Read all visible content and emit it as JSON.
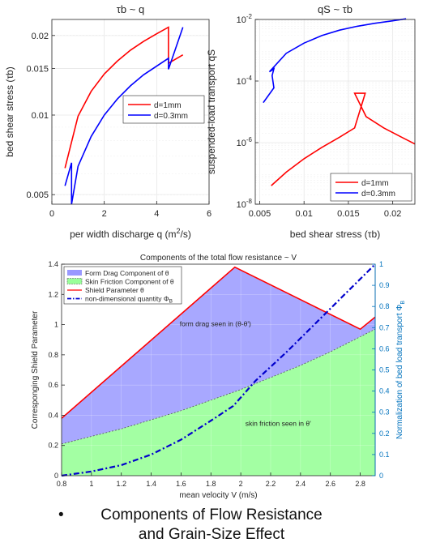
{
  "chart_data": [
    {
      "type": "line",
      "title": "τb ~ q",
      "xlabel": "per width discharge q (m²/s)",
      "ylabel": "bed shear stress (τb)",
      "yscale": "log",
      "xlim": [
        0,
        6
      ],
      "ylim": [
        0.0046,
        0.023
      ],
      "xticks": [
        0,
        2,
        4,
        6
      ],
      "yticks": [
        0.005,
        0.01,
        0.015,
        0.02
      ],
      "xtick_labels": [
        "0",
        "2",
        "4",
        "6"
      ],
      "ytick_labels": [
        "0.005",
        "0.01",
        "0.015",
        "0.02"
      ],
      "grid": true,
      "legend_position": "center-right",
      "series": [
        {
          "name": "d=1mm",
          "color": "#ff0000",
          "x": [
            0.5,
            1.0,
            1.5,
            2.0,
            2.5,
            3.0,
            3.5,
            4.0,
            4.45,
            4.45,
            5.0
          ],
          "y": [
            0.0063,
            0.0099,
            0.0123,
            0.0143,
            0.016,
            0.0176,
            0.019,
            0.0203,
            0.0215,
            0.0157,
            0.0169
          ]
        },
        {
          "name": "d=0.3mm",
          "color": "#0000ff",
          "x": [
            0.5,
            0.75,
            0.75,
            1.0,
            1.5,
            2.0,
            2.5,
            3.0,
            3.5,
            4.45,
            4.45,
            5.0
          ],
          "y": [
            0.0054,
            0.0066,
            0.0046,
            0.0064,
            0.0083,
            0.01,
            0.0115,
            0.0129,
            0.0142,
            0.0164,
            0.0149,
            0.0215
          ]
        }
      ]
    },
    {
      "type": "line",
      "title": "qS ~ τb",
      "xlabel": "bed shear stress (τb)",
      "ylabel": "suspended-load transport qS",
      "yscale": "log",
      "xlim": [
        0.0045,
        0.0225
      ],
      "ylim": [
        1e-08,
        0.01
      ],
      "xticks": [
        0.005,
        0.01,
        0.015,
        0.02
      ],
      "xtick_labels": [
        "0.005",
        "0.01",
        "0.015",
        "0.02"
      ],
      "yticks": [
        1e-08,
        1e-06,
        0.0001,
        0.01
      ],
      "ytick_labels": [
        "10^-8",
        "10^-6",
        "10^-4",
        "10^-2"
      ],
      "grid": true,
      "legend_position": "bottom-right",
      "series": [
        {
          "name": "d=1mm",
          "color": "#ff0000",
          "x": [
            0.0063,
            0.008,
            0.01,
            0.012,
            0.014,
            0.0157,
            0.0169,
            0.0157,
            0.017,
            0.019,
            0.021,
            0.0225
          ],
          "y": [
            4e-08,
            1.1e-07,
            3e-07,
            7e-07,
            1.5e-06,
            3e-06,
            4e-05,
            4e-05,
            7e-06,
            3e-06,
            1.5e-06,
            9e-07
          ]
        },
        {
          "name": "d=0.3mm",
          "color": "#0000ff",
          "x": [
            0.0054,
            0.0066,
            0.0064,
            0.0066,
            0.0061,
            0.008,
            0.01,
            0.012,
            0.014,
            0.016,
            0.018,
            0.02,
            0.0215
          ],
          "y": [
            2e-05,
            6e-05,
            0.00015,
            0.00025,
            0.0002,
            0.0008,
            0.0017,
            0.003,
            0.0045,
            0.006,
            0.0075,
            0.009,
            0.0105
          ]
        }
      ]
    },
    {
      "type": "area",
      "title": "Components of the total flow resistance ~ V",
      "xlabel": "mean velocity V (m/s)",
      "ylabel": "Corresponging Shield Parameter",
      "y2label": "Normalization of bed load transport Φ_B",
      "xlim": [
        0.8,
        2.9
      ],
      "ylim": [
        0,
        1.4
      ],
      "y2lim": [
        0,
        1
      ],
      "xticks": [
        0.8,
        1,
        1.2,
        1.4,
        1.6,
        1.8,
        2,
        2.2,
        2.4,
        2.6,
        2.8
      ],
      "xtick_labels": [
        "0.8",
        "1",
        "1.2",
        "1.4",
        "1.6",
        "1.8",
        "2",
        "2.2",
        "2.4",
        "2.6",
        "2.8"
      ],
      "yticks": [
        0,
        0.2,
        0.4,
        0.6,
        0.8,
        1,
        1.2,
        1.4
      ],
      "ytick_labels": [
        "0",
        "0.2",
        "0.4",
        "0.6",
        "0.8",
        "1",
        "1.2",
        "1.4"
      ],
      "y2ticks": [
        0,
        0.1,
        0.2,
        0.3,
        0.4,
        0.5,
        0.6,
        0.7,
        0.8,
        0.9,
        1
      ],
      "y2tick_labels": [
        "0",
        "0.1",
        "0.2",
        "0.3",
        "0.4",
        "0.5",
        "0.6",
        "0.7",
        "0.8",
        "0.9",
        "1"
      ],
      "grid": true,
      "legend_position": "top-left",
      "annotations": [
        "form drag seen in (θ-θ')",
        "skin friction seen in θ'"
      ],
      "series": [
        {
          "name": "Form Drag Component of θ",
          "color": "#9999ff",
          "kind": "fill-between"
        },
        {
          "name": "Skin Friction Component of θ",
          "color": "#99ff99",
          "kind": "fill",
          "x": [
            0.8,
            1.0,
            1.2,
            1.4,
            1.6,
            1.8,
            2.0,
            2.2,
            2.4,
            2.6,
            2.8,
            2.9
          ],
          "y": [
            0.21,
            0.26,
            0.31,
            0.37,
            0.43,
            0.5,
            0.57,
            0.65,
            0.73,
            0.82,
            0.92,
            0.97
          ]
        },
        {
          "name": "Shield Parameter θ",
          "color": "#ff0000",
          "kind": "line",
          "x": [
            0.8,
            1.96,
            2.8,
            2.9
          ],
          "y": [
            0.38,
            1.38,
            0.97,
            1.05
          ]
        },
        {
          "name": "non-dimensional quantity Φ_B",
          "color": "#0000cc",
          "kind": "dashdot",
          "axis": "right",
          "x": [
            0.8,
            0.9,
            1.0,
            1.2,
            1.4,
            1.6,
            1.8,
            1.95,
            2.1,
            2.3,
            2.5,
            2.7,
            2.9
          ],
          "y": [
            0.0,
            0.01,
            0.02,
            0.05,
            0.1,
            0.17,
            0.26,
            0.33,
            0.45,
            0.58,
            0.72,
            0.86,
            1.0
          ]
        }
      ]
    }
  ],
  "caption": {
    "bullet": "•",
    "line1": "Components of Flow Resistance",
    "line2": "and Grain-Size Effect"
  }
}
